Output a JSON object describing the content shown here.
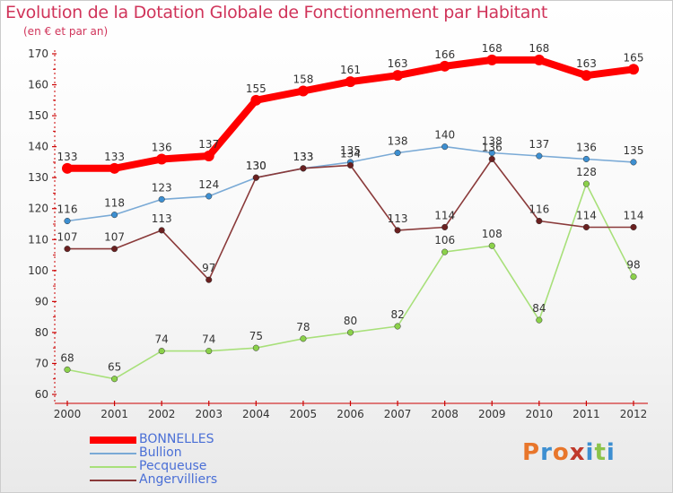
{
  "title": "Evolution de la Dotation Globale de Fonctionnement par Habitant",
  "subtitle": "(en € et par an)",
  "brand": "Proxiti",
  "colors": {
    "title": "#d0345a",
    "legend_text": "#4a6fd6",
    "axis": "#cc0000",
    "brand": [
      "#e8762b",
      "#3d8fd1",
      "#e8762b",
      "#c0392b",
      "#3d8fd1",
      "#8bc34a",
      "#3d8fd1"
    ]
  },
  "chart_data": {
    "type": "line",
    "x": [
      "2000",
      "2001",
      "2002",
      "2003",
      "2004",
      "2005",
      "2006",
      "2007",
      "2008",
      "2009",
      "2010",
      "2011",
      "2012"
    ],
    "ylim": [
      60,
      170
    ],
    "yticks": [
      60,
      70,
      80,
      90,
      100,
      110,
      120,
      130,
      140,
      150,
      160,
      170
    ],
    "grid": false,
    "legend_position": "bottom-left",
    "series": [
      {
        "name": "BONNELLES",
        "color": "#ff0000",
        "marker_color": "#ff0000",
        "emphasis": true,
        "values": [
          133,
          133,
          136,
          137,
          155,
          158,
          161,
          163,
          166,
          168,
          168,
          163,
          165
        ]
      },
      {
        "name": "Bullion",
        "color": "#7aaad6",
        "marker_color": "#3d8fd1",
        "values": [
          116,
          118,
          123,
          124,
          130,
          133,
          135,
          138,
          140,
          138,
          137,
          136,
          135
        ]
      },
      {
        "name": "Pecqueuse",
        "color": "#a8e07a",
        "marker_color": "#8bd14a",
        "values": [
          68,
          65,
          74,
          74,
          75,
          78,
          80,
          82,
          106,
          108,
          84,
          128,
          98
        ]
      },
      {
        "name": "Angervilliers",
        "color": "#8a3a3a",
        "marker_color": "#6a2020",
        "values": [
          107,
          107,
          113,
          97,
          130,
          133,
          134,
          113,
          114,
          136,
          116,
          114,
          114
        ]
      }
    ]
  }
}
